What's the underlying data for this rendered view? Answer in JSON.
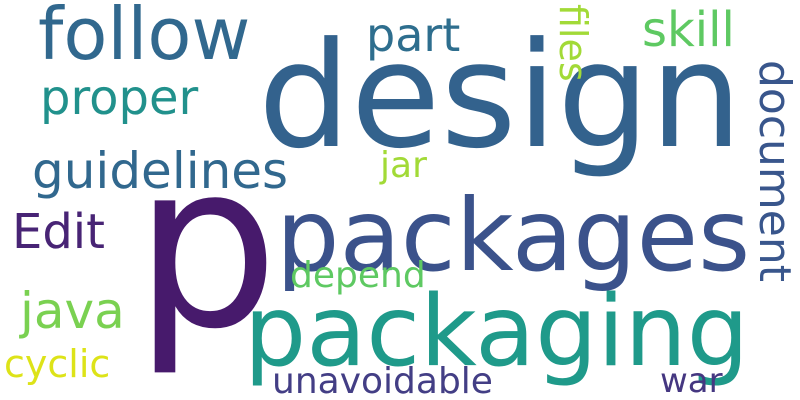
{
  "words": [
    {
      "text": "design",
      "color": "#33628d"
    },
    {
      "text": "follow",
      "color": "#31688e"
    },
    {
      "text": "part",
      "color": "#2e6e8e"
    },
    {
      "text": "skill",
      "color": "#5ec962"
    },
    {
      "text": "files",
      "color": "#a2da37"
    },
    {
      "text": "proper",
      "color": "#21918c"
    },
    {
      "text": "document",
      "color": "#39568c"
    },
    {
      "text": "guidelines",
      "color": "#31688e"
    },
    {
      "text": "jar",
      "color": "#a2da37"
    },
    {
      "text": "Edit",
      "color": "#482475"
    },
    {
      "text": "p",
      "color": "#471a6c"
    },
    {
      "text": "packages",
      "color": "#3b528b"
    },
    {
      "text": "depend",
      "color": "#5ec962"
    },
    {
      "text": "java",
      "color": "#7ad151"
    },
    {
      "text": "packaging",
      "color": "#1f9a8a"
    },
    {
      "text": "cyclic",
      "color": "#dde318"
    },
    {
      "text": "unavoidable",
      "color": "#433e85"
    },
    {
      "text": "war",
      "color": "#453781"
    }
  ]
}
